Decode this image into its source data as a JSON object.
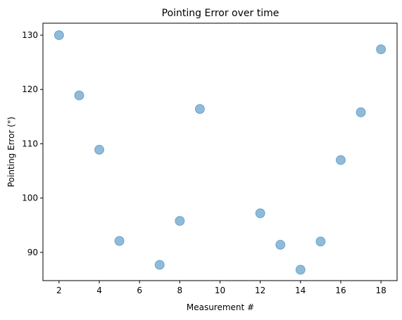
{
  "chart_data": {
    "type": "scatter",
    "title": "Pointing Error over time",
    "xlabel": "Measurement #",
    "ylabel": "Pointing Error (\")",
    "xlim": [
      1.2,
      18.8
    ],
    "ylim": [
      84.8,
      132.2
    ],
    "x_ticks": [
      2,
      4,
      6,
      8,
      10,
      12,
      14,
      16,
      18
    ],
    "y_ticks": [
      90,
      100,
      110,
      120,
      130
    ],
    "grid": false,
    "marker_color": "#1f77b4",
    "marker_alpha": 0.5,
    "series": [
      {
        "points": [
          {
            "x": 2,
            "y": 130.0
          },
          {
            "x": 3,
            "y": 118.9
          },
          {
            "x": 4,
            "y": 108.9
          },
          {
            "x": 5,
            "y": 92.1
          },
          {
            "x": 7,
            "y": 87.7
          },
          {
            "x": 8,
            "y": 95.8
          },
          {
            "x": 9,
            "y": 116.4
          },
          {
            "x": 12,
            "y": 97.2
          },
          {
            "x": 13,
            "y": 91.4
          },
          {
            "x": 14,
            "y": 86.8
          },
          {
            "x": 15,
            "y": 92.0
          },
          {
            "x": 16,
            "y": 107.0
          },
          {
            "x": 17,
            "y": 115.8
          },
          {
            "x": 18,
            "y": 127.4
          }
        ]
      }
    ]
  }
}
